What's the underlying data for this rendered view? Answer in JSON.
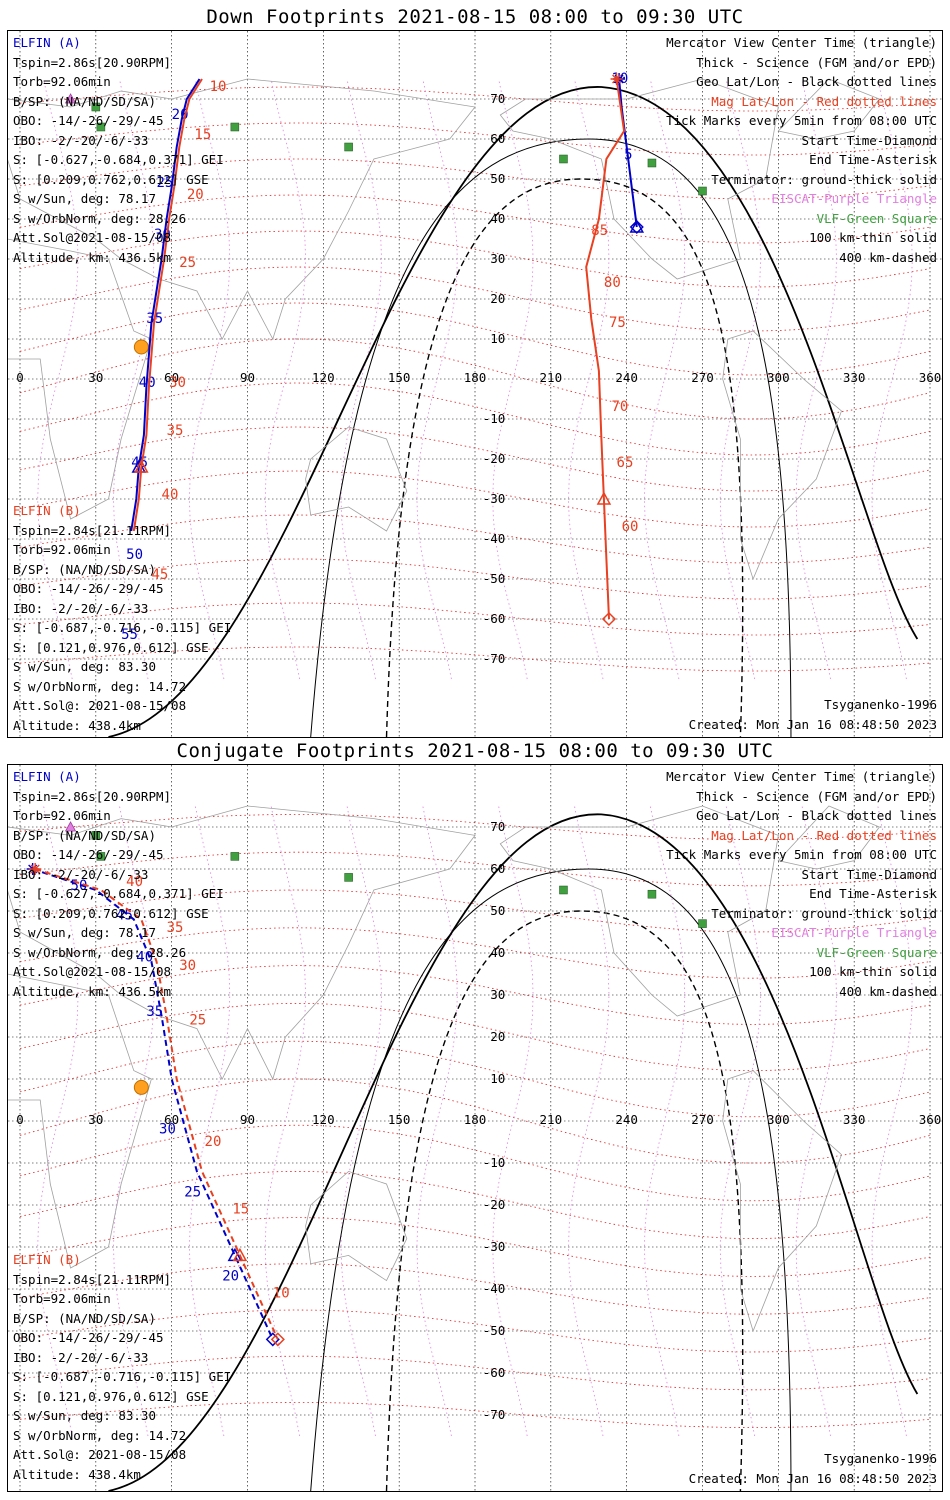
{
  "panels": [
    {
      "title": "Down Footprints 2021-08-15 08:00 to 09:30 UTC",
      "elfin_a": {
        "label": "ELFIN (A)",
        "lines": [
          "Tspin=2.86s[20.90RPM]",
          "Torb=92.06min",
          "B/SP: (NA/ND/SD/SA)",
          "OBO: -14/-26/-29/-45",
          "IBO: -2/-20/-6/-33",
          "S: [-0.627,-0.684,0.371] GEI",
          "S: [0.209,0.762,0.612] GSE",
          "S w/Sun, deg: 78.17",
          "S w/OrbNorm, deg: 28.26",
          "Att.Sol@2021-08-15/08",
          "Altitude, km: 436.5km"
        ]
      },
      "elfin_b": {
        "label": "ELFIN (B)",
        "lines": [
          "Tspin=2.84s[21.11RPM]",
          "Torb=92.06min",
          "B/SP: (NA/ND/SD/SA)",
          "OBO: -14/-26/-29/-45",
          "IBO: -2/-20/-6/-33",
          "S: [-0.687,-0.716,-0.115] GEI",
          "S: [0.121,0.976,0.612] GSE",
          "S w/Sun, deg: 83.30",
          "S w/OrbNorm, deg: 14.72",
          "Att.Sol@: 2021-08-15/08",
          "Altitude: 438.4km"
        ]
      },
      "footer_right_1": "Tsyganenko-1996",
      "footer_right_2": "Created: Mon Jan 16 08:48:50 2023"
    },
    {
      "title": "Conjugate Footprints 2021-08-15 08:00 to 09:30 UTC",
      "elfin_a": {
        "label": "ELFIN (A)",
        "lines": [
          "Tspin=2.86s[20.90RPM]",
          "Torb=92.06min",
          "B/SP: (NA/ND/SD/SA)",
          "OBO: -14/-26/-29/-45",
          "IBO: -2/-20/-6/-33",
          "S: [-0.627,-0.684,0.371] GEI",
          "S: [0.209,0.762,0.612] GSE",
          "S w/Sun, deg: 78.17",
          "S w/OrbNorm, deg: 28.26",
          "Att.Sol@2021-08-15/08",
          "Altitude, km: 436.5km"
        ]
      },
      "elfin_b": {
        "label": "ELFIN (B)",
        "lines": [
          "Tspin=2.84s[21.11RPM]",
          "Torb=92.06min",
          "B/SP: (NA/ND/SD/SA)",
          "OBO: -14/-26/-29/-45",
          "IBO: -2/-20/-6/-33",
          "S: [-0.687,-0.716,-0.115] GEI",
          "S: [0.121,0.976,0.612] GSE",
          "S w/Sun, deg: 83.30",
          "S w/OrbNorm, deg: 14.72",
          "Att.Sol@: 2021-08-15/08",
          "Altitude: 438.4km"
        ]
      },
      "footer_right_1": "Tsyganenko-1996",
      "footer_right_2": "Created: Mon Jan 16 08:48:50 2023"
    }
  ],
  "legend": {
    "line1": "Mercator View Center Time (triangle)",
    "line2": "Thick - Science (FGM and/or EPD)",
    "line3": "Geo Lat/Lon - Black dotted lines",
    "line4": "Mag Lat/Lon - Red dotted lines",
    "line5": "Tick Marks every 5min from 08:00 UTC",
    "line6": "Start Time-Diamond",
    "line7": "End Time-Asterisk",
    "line8": "Terminator: ground-thick solid",
    "line9": "EISCAT-Purple Triangle",
    "line10": "VLF-Green Square",
    "line11": "100 km-thin solid",
    "line12": "400 km-dashed"
  },
  "colors": {
    "elfin_a": "#0000c8",
    "elfin_b": "#e84020",
    "mag_grid": "#e02020",
    "eiscat": "#e080e0",
    "vlf": "#40a040"
  },
  "map_axes": {
    "lon_ticks": [
      "0",
      "30",
      "60",
      "90",
      "120",
      "150",
      "180",
      "210",
      "240",
      "270",
      "300",
      "330",
      "360"
    ],
    "lat_ticks": [
      "70",
      "60",
      "50",
      "40",
      "30",
      "20",
      "10",
      "-10",
      "-20",
      "-30",
      "-40",
      "-50",
      "-60",
      "-70"
    ]
  },
  "chart_data": [
    {
      "type": "line",
      "title": "Down Footprints 2021-08-15 08:00 to 09:30 UTC",
      "xlabel": "",
      "ylabel": "",
      "xlim": [
        0,
        360
      ],
      "ylim": [
        -75,
        75
      ],
      "series": [
        {
          "name": "ELFIN (A)",
          "lon": [
            71,
            66,
            64,
            62,
            60,
            58,
            56,
            52,
            50,
            49,
            47,
            46,
            44
          ],
          "lat": [
            75,
            70,
            65,
            58,
            48,
            40,
            30,
            14,
            -2,
            -14,
            -22,
            -30,
            -38
          ],
          "tick_labels": [
            {
              "t": "20",
              "lon": 60,
              "lat": 65
            },
            {
              "t": "25",
              "lon": 54,
              "lat": 48
            },
            {
              "t": "30",
              "lon": 53,
              "lat": 35
            },
            {
              "t": "35",
              "lon": 50,
              "lat": 14
            },
            {
              "t": "40",
              "lon": 47,
              "lat": -2
            },
            {
              "t": "45",
              "lon": 44,
              "lat": -22
            },
            {
              "t": "50",
              "lon": 42,
              "lat": -45
            },
            {
              "t": "55",
              "lon": 40,
              "lat": -65
            }
          ]
        },
        {
          "name": "ELFIN (B)",
          "lon": [
            72,
            67,
            65,
            63,
            61,
            59,
            57,
            53,
            51,
            50,
            48,
            47,
            45
          ],
          "lat": [
            75,
            70,
            65,
            58,
            48,
            40,
            30,
            14,
            -2,
            -14,
            -22,
            -30,
            -38
          ],
          "tick_labels": [
            {
              "t": "10",
              "lon": 75,
              "lat": 72
            },
            {
              "t": "15",
              "lon": 69,
              "lat": 60
            },
            {
              "t": "20",
              "lon": 66,
              "lat": 45
            },
            {
              "t": "25",
              "lon": 63,
              "lat": 28
            },
            {
              "t": "30",
              "lon": 59,
              "lat": -2
            },
            {
              "t": "35",
              "lon": 58,
              "lat": -14
            },
            {
              "t": "40",
              "lon": 56,
              "lat": -30
            },
            {
              "t": "45",
              "lon": 52,
              "lat": -50
            }
          ]
        },
        {
          "name": "ELFIN (A) 2",
          "lon": [
            237,
            238,
            240,
            242,
            244
          ],
          "lat": [
            75,
            68,
            58,
            48,
            38
          ],
          "tick_labels": [
            {
              "t": "10",
              "lon": 234,
              "lat": 74
            },
            {
              "t": "5",
              "lon": 239,
              "lat": 55
            }
          ]
        },
        {
          "name": "ELFIN (B) 2",
          "lon": [
            236,
            239,
            232,
            229,
            224,
            226,
            229,
            230,
            231,
            232,
            233
          ],
          "lat": [
            75,
            62,
            55,
            40,
            28,
            15,
            2,
            -15,
            -30,
            -45,
            -60
          ],
          "tick_labels": [
            {
              "t": "85",
              "lon": 226,
              "lat": 36
            },
            {
              "t": "80",
              "lon": 231,
              "lat": 23
            },
            {
              "t": "75",
              "lon": 233,
              "lat": 13
            },
            {
              "t": "70",
              "lon": 234,
              "lat": -8
            },
            {
              "t": "65",
              "lon": 236,
              "lat": -22
            },
            {
              "t": "60",
              "lon": 238,
              "lat": -38
            }
          ]
        }
      ]
    },
    {
      "type": "line",
      "title": "Conjugate Footprints 2021-08-15 08:00 to 09:30 UTC",
      "xlabel": "",
      "ylabel": "",
      "xlim": [
        0,
        360
      ],
      "ylim": [
        -75,
        75
      ],
      "series": [
        {
          "name": "ELFIN (A)",
          "lon": [
            5,
            30,
            45,
            52,
            56,
            60,
            70,
            85,
            100
          ],
          "lat": [
            60,
            55,
            48,
            38,
            25,
            10,
            -12,
            -32,
            -52
          ],
          "tick_labels": [
            {
              "t": "50",
              "lon": 20,
              "lat": 55
            },
            {
              "t": "45",
              "lon": 38,
              "lat": 48
            },
            {
              "t": "40",
              "lon": 46,
              "lat": 38
            },
            {
              "t": "35",
              "lon": 50,
              "lat": 25
            },
            {
              "t": "30",
              "lon": 55,
              "lat": -3
            },
            {
              "t": "25",
              "lon": 65,
              "lat": -18
            },
            {
              "t": "20",
              "lon": 80,
              "lat": -38
            }
          ]
        },
        {
          "name": "ELFIN (B)",
          "lon": [
            6,
            32,
            48,
            54,
            58,
            62,
            72,
            87,
            102
          ],
          "lat": [
            60,
            55,
            48,
            38,
            25,
            10,
            -12,
            -32,
            -52
          ],
          "tick_labels": [
            {
              "t": "40",
              "lon": 42,
              "lat": 56
            },
            {
              "t": "35",
              "lon": 58,
              "lat": 45
            },
            {
              "t": "30",
              "lon": 63,
              "lat": 36
            },
            {
              "t": "25",
              "lon": 67,
              "lat": 23
            },
            {
              "t": "20",
              "lon": 73,
              "lat": -6
            },
            {
              "t": "15",
              "lon": 84,
              "lat": -22
            },
            {
              "t": "10",
              "lon": 100,
              "lat": -42
            }
          ]
        }
      ]
    }
  ]
}
